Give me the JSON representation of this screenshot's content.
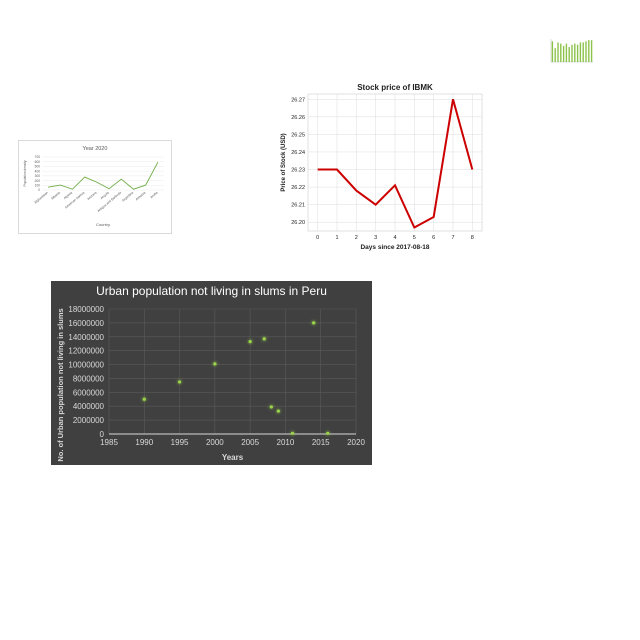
{
  "chart_data": [
    {
      "id": "mini",
      "type": "bar",
      "title": "",
      "xlabel": "",
      "ylabel": "",
      "categories": [
        "",
        "",
        "",
        "",
        "",
        "",
        "",
        "",
        "",
        "",
        "",
        "",
        "",
        "",
        ""
      ],
      "values": [
        18,
        12,
        17,
        16,
        14,
        16,
        13,
        15,
        16,
        15,
        17,
        17,
        18,
        19,
        19
      ],
      "ylim": [
        0,
        20
      ],
      "colors": {
        "bar": "#8bc34a",
        "axis": "#bbbbbb"
      }
    },
    {
      "id": "year2020",
      "type": "line",
      "title": "Year 2020",
      "xlabel": "Country",
      "ylabel": "Population density",
      "categories": [
        "Afghanistan",
        "Albania",
        "Algeria",
        "American Samoa",
        "Andorra",
        "Angola",
        "Antigua and Barbuda",
        "Argentina",
        "Armenia",
        "Aruba"
      ],
      "values": [
        60,
        105,
        18,
        275,
        165,
        26,
        229,
        17,
        104,
        590
      ],
      "yticks": [
        "0",
        "100",
        "200",
        "300",
        "400",
        "500",
        "600",
        "700"
      ],
      "ylim": [
        0,
        700
      ],
      "grid": true,
      "colors": {
        "line": "#70ad47",
        "grid": "#e6e6e6",
        "text": "#595959"
      }
    },
    {
      "id": "stock",
      "type": "line",
      "title": "Stock price of IBMK",
      "xlabel": "Days since 2017-08-18",
      "ylabel": "Price of Stock (USD)",
      "x": [
        0,
        1,
        2,
        3,
        4,
        5,
        6,
        7,
        8
      ],
      "values": [
        26.23,
        26.23,
        26.218,
        26.21,
        26.221,
        26.197,
        26.203,
        26.27,
        26.23
      ],
      "xticks": [
        "0",
        "1",
        "2",
        "3",
        "4",
        "5",
        "6",
        "7",
        "8"
      ],
      "yticks": [
        "26.20",
        "26.21",
        "26.22",
        "26.23",
        "26.24",
        "26.25",
        "26.26",
        "26.27"
      ],
      "xlim": [
        -0.5,
        8.5
      ],
      "ylim": [
        26.195,
        26.273
      ],
      "grid": true,
      "colors": {
        "line": "#cc0000",
        "grid": "#dddddd",
        "text": "#222222"
      }
    },
    {
      "id": "slums",
      "type": "scatter",
      "title": "Urban population not living in slums in Peru",
      "xlabel": "Years",
      "ylabel": "No. of Urban population not living in slums",
      "x": [
        1990,
        1995,
        2000,
        2005,
        2007,
        2008,
        2009,
        2011,
        2014,
        2016
      ],
      "values": [
        5000000,
        7500000,
        10100000,
        13300000,
        13700000,
        3900000,
        3300000,
        100000,
        16000000,
        100000
      ],
      "xticks": [
        "1985",
        "1990",
        "1995",
        "2000",
        "2005",
        "2010",
        "2015",
        "2020"
      ],
      "yticks": [
        "0",
        "2000000",
        "4000000",
        "6000000",
        "8000000",
        "10000000",
        "12000000",
        "14000000",
        "16000000",
        "18000000"
      ],
      "xlim": [
        1985,
        2020
      ],
      "ylim": [
        0,
        18000000
      ],
      "grid": true,
      "colors": {
        "background": "#404040",
        "point": "#9bd54a",
        "grid": "#5a5a5a",
        "text": "#d9d9d9",
        "title": "#ffffff"
      }
    }
  ]
}
